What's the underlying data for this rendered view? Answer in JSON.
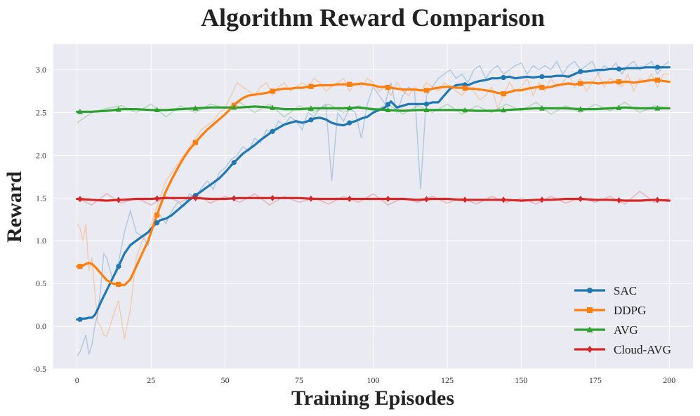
{
  "chart_data": {
    "type": "line",
    "title": "Algorithm Reward Comparison",
    "xlabel": "Training Episodes",
    "ylabel": "Reward",
    "xlim": [
      -8,
      208
    ],
    "ylim": [
      -0.5,
      3.3
    ],
    "xticks": [
      0,
      25,
      50,
      75,
      100,
      125,
      150,
      175,
      200
    ],
    "yticks": [
      -0.5,
      0.0,
      0.5,
      1.0,
      1.5,
      2.0,
      2.5,
      3.0
    ],
    "ytick_labels": [
      "-0.5",
      "0.0",
      "0.5",
      "1.0",
      "1.5",
      "2.0",
      "2.5",
      "3.0"
    ],
    "grid": true,
    "legend_position": "lower-right",
    "background_color": "#eaeaf2",
    "series": [
      {
        "name": "SAC",
        "color": "#1f77b4",
        "marker": "circle",
        "x": [
          0,
          1,
          2,
          3,
          4,
          5,
          6,
          7,
          8,
          9,
          10,
          12,
          14,
          16,
          18,
          20,
          22,
          24,
          26,
          28,
          30,
          32,
          34,
          36,
          38,
          40,
          42,
          44,
          46,
          48,
          50,
          52,
          54,
          56,
          58,
          60,
          62,
          64,
          66,
          68,
          70,
          72,
          74,
          76,
          78,
          80,
          82,
          84,
          86,
          88,
          90,
          92,
          94,
          96,
          98,
          100,
          102,
          104,
          106,
          108,
          110,
          112,
          114,
          116,
          118,
          120,
          122,
          124,
          126,
          128,
          130,
          132,
          134,
          136,
          138,
          140,
          142,
          144,
          146,
          148,
          150,
          152,
          154,
          156,
          158,
          160,
          162,
          164,
          166,
          168,
          170,
          172,
          174,
          176,
          178,
          180,
          182,
          184,
          186,
          188,
          190,
          192,
          194,
          196,
          198,
          200
        ],
        "values": [
          0.08,
          0.08,
          0.09,
          0.09,
          0.1,
          0.1,
          0.13,
          0.2,
          0.28,
          0.35,
          0.42,
          0.56,
          0.7,
          0.85,
          0.95,
          1.0,
          1.05,
          1.1,
          1.18,
          1.24,
          1.26,
          1.3,
          1.36,
          1.42,
          1.48,
          1.53,
          1.58,
          1.63,
          1.68,
          1.73,
          1.8,
          1.88,
          1.95,
          2.02,
          2.07,
          2.12,
          2.18,
          2.23,
          2.28,
          2.32,
          2.36,
          2.38,
          2.4,
          2.38,
          2.4,
          2.43,
          2.44,
          2.42,
          2.38,
          2.36,
          2.35,
          2.38,
          2.4,
          2.43,
          2.45,
          2.5,
          2.53,
          2.56,
          2.63,
          2.56,
          2.58,
          2.6,
          2.6,
          2.6,
          2.6,
          2.62,
          2.62,
          2.7,
          2.78,
          2.82,
          2.83,
          2.82,
          2.85,
          2.87,
          2.88,
          2.9,
          2.9,
          2.91,
          2.92,
          2.9,
          2.91,
          2.92,
          2.91,
          2.92,
          2.92,
          2.92,
          2.93,
          2.93,
          2.92,
          2.95,
          2.98,
          2.98,
          2.99,
          3.0,
          3.0,
          3.01,
          3.01,
          3.01,
          3.02,
          3.02,
          3.02,
          3.03,
          3.03,
          3.03,
          3.03,
          3.03
        ],
        "raw_values": [
          -0.35,
          -0.3,
          -0.2,
          -0.1,
          -0.33,
          -0.22,
          0.0,
          0.15,
          0.45,
          0.85,
          0.8,
          0.55,
          0.75,
          1.1,
          1.35,
          1.1,
          1.05,
          0.95,
          1.25,
          1.3,
          1.2,
          1.35,
          1.45,
          1.4,
          1.55,
          1.5,
          1.62,
          1.7,
          1.6,
          1.8,
          1.85,
          1.95,
          2.0,
          2.1,
          2.05,
          2.2,
          2.15,
          2.3,
          2.25,
          2.4,
          2.35,
          2.45,
          2.4,
          2.3,
          2.5,
          2.45,
          2.55,
          2.6,
          1.7,
          2.5,
          2.4,
          2.55,
          2.5,
          2.2,
          2.6,
          2.8,
          2.7,
          2.6,
          2.85,
          2.5,
          2.7,
          2.8,
          2.75,
          1.6,
          2.7,
          2.8,
          2.9,
          2.95,
          3.0,
          2.9,
          2.95,
          2.85,
          3.0,
          3.05,
          2.9,
          3.0,
          3.05,
          2.95,
          3.0,
          3.05,
          3.08,
          2.95,
          3.05,
          3.0,
          3.05,
          3.0,
          3.1,
          2.95,
          3.05,
          3.1,
          3.0,
          3.05,
          3.1,
          2.95,
          3.05,
          3.0,
          3.08,
          2.95,
          3.05,
          3.1,
          3.0,
          3.05,
          3.1,
          2.95,
          3.05,
          3.1
        ]
      },
      {
        "name": "DDPG",
        "color": "#ff7f0e",
        "marker": "square",
        "x": [
          0,
          1,
          2,
          3,
          4,
          5,
          6,
          7,
          8,
          9,
          10,
          12,
          14,
          16,
          18,
          20,
          22,
          24,
          26,
          28,
          30,
          32,
          34,
          36,
          38,
          40,
          42,
          44,
          46,
          48,
          50,
          52,
          54,
          56,
          58,
          60,
          62,
          64,
          66,
          68,
          70,
          72,
          74,
          76,
          78,
          80,
          82,
          84,
          86,
          88,
          90,
          92,
          94,
          96,
          98,
          100,
          102,
          104,
          106,
          108,
          110,
          112,
          114,
          116,
          118,
          120,
          122,
          124,
          126,
          128,
          130,
          132,
          134,
          136,
          138,
          140,
          142,
          144,
          146,
          148,
          150,
          152,
          154,
          156,
          158,
          160,
          162,
          164,
          166,
          168,
          170,
          172,
          174,
          176,
          178,
          180,
          182,
          184,
          186,
          188,
          190,
          192,
          194,
          196,
          198,
          200
        ],
        "values": [
          0.7,
          0.7,
          0.71,
          0.73,
          0.74,
          0.73,
          0.7,
          0.66,
          0.62,
          0.58,
          0.54,
          0.5,
          0.49,
          0.48,
          0.55,
          0.7,
          0.85,
          1.0,
          1.2,
          1.4,
          1.58,
          1.72,
          1.85,
          1.97,
          2.07,
          2.15,
          2.23,
          2.3,
          2.36,
          2.42,
          2.48,
          2.55,
          2.62,
          2.67,
          2.7,
          2.71,
          2.72,
          2.73,
          2.75,
          2.77,
          2.78,
          2.78,
          2.79,
          2.79,
          2.8,
          2.81,
          2.82,
          2.82,
          2.82,
          2.83,
          2.83,
          2.83,
          2.83,
          2.84,
          2.83,
          2.82,
          2.8,
          2.8,
          2.79,
          2.78,
          2.77,
          2.77,
          2.77,
          2.76,
          2.76,
          2.78,
          2.79,
          2.8,
          2.8,
          2.79,
          2.79,
          2.78,
          2.78,
          2.77,
          2.76,
          2.75,
          2.73,
          2.72,
          2.74,
          2.76,
          2.76,
          2.78,
          2.79,
          2.8,
          2.79,
          2.8,
          2.82,
          2.83,
          2.84,
          2.83,
          2.84,
          2.85,
          2.85,
          2.84,
          2.85,
          2.85,
          2.86,
          2.86,
          2.86,
          2.85,
          2.86,
          2.87,
          2.88,
          2.88,
          2.87,
          2.86
        ],
        "raw_values": [
          1.2,
          1.15,
          1.0,
          1.2,
          0.65,
          0.8,
          0.4,
          0.05,
          0.0,
          -0.1,
          -0.12,
          0.1,
          0.3,
          -0.15,
          0.2,
          0.8,
          1.0,
          1.1,
          1.3,
          1.5,
          1.7,
          1.8,
          1.9,
          2.0,
          2.1,
          2.2,
          2.3,
          2.35,
          2.4,
          2.5,
          2.55,
          2.7,
          2.85,
          2.8,
          2.75,
          2.7,
          2.8,
          2.85,
          2.7,
          2.8,
          2.85,
          2.75,
          2.8,
          2.85,
          2.8,
          2.9,
          2.85,
          2.75,
          2.8,
          2.85,
          2.9,
          2.75,
          2.85,
          2.8,
          2.9,
          2.85,
          2.75,
          2.8,
          2.7,
          2.85,
          2.75,
          2.7,
          2.8,
          2.75,
          2.85,
          2.8,
          2.75,
          2.85,
          2.8,
          2.75,
          2.7,
          2.8,
          2.75,
          2.65,
          2.7,
          2.8,
          2.55,
          2.7,
          2.85,
          2.75,
          2.8,
          2.9,
          2.7,
          2.85,
          2.75,
          2.9,
          2.8,
          2.85,
          2.95,
          2.8,
          2.9,
          2.75,
          2.85,
          2.95,
          2.8,
          2.9,
          2.85,
          2.8,
          2.95,
          2.75,
          2.9,
          2.85,
          2.95,
          2.8,
          2.95,
          2.95
        ]
      },
      {
        "name": "AVG",
        "color": "#2ca02c",
        "marker": "triangle",
        "x": [
          0,
          5,
          10,
          15,
          20,
          25,
          30,
          35,
          40,
          45,
          50,
          55,
          60,
          65,
          70,
          75,
          80,
          85,
          90,
          95,
          100,
          105,
          110,
          115,
          120,
          125,
          130,
          135,
          140,
          145,
          150,
          155,
          160,
          165,
          170,
          175,
          180,
          185,
          190,
          195,
          200
        ],
        "values": [
          2.51,
          2.51,
          2.52,
          2.54,
          2.54,
          2.53,
          2.53,
          2.54,
          2.55,
          2.56,
          2.56,
          2.56,
          2.57,
          2.56,
          2.54,
          2.54,
          2.55,
          2.55,
          2.55,
          2.56,
          2.54,
          2.53,
          2.52,
          2.53,
          2.53,
          2.53,
          2.53,
          2.52,
          2.52,
          2.53,
          2.54,
          2.55,
          2.55,
          2.55,
          2.54,
          2.54,
          2.55,
          2.56,
          2.55,
          2.55,
          2.55
        ],
        "raw_values": [
          2.38,
          2.5,
          2.55,
          2.58,
          2.5,
          2.6,
          2.45,
          2.58,
          2.5,
          2.6,
          2.55,
          2.62,
          2.5,
          2.6,
          2.45,
          2.58,
          2.5,
          2.6,
          2.5,
          2.58,
          2.52,
          2.6,
          2.48,
          2.58,
          2.5,
          2.6,
          2.48,
          2.58,
          2.5,
          2.6,
          2.52,
          2.62,
          2.48,
          2.58,
          2.5,
          2.6,
          2.52,
          2.62,
          2.5,
          2.58,
          2.55
        ]
      },
      {
        "name": "Cloud-AVG",
        "color": "#d62728",
        "marker": "diamond",
        "x": [
          0,
          5,
          10,
          15,
          20,
          25,
          30,
          35,
          40,
          45,
          50,
          55,
          60,
          65,
          70,
          75,
          80,
          85,
          90,
          95,
          100,
          105,
          110,
          115,
          120,
          125,
          130,
          135,
          140,
          145,
          150,
          155,
          160,
          165,
          170,
          175,
          180,
          185,
          190,
          195,
          200
        ],
        "values": [
          1.49,
          1.48,
          1.47,
          1.48,
          1.49,
          1.49,
          1.5,
          1.5,
          1.5,
          1.49,
          1.49,
          1.5,
          1.5,
          1.5,
          1.5,
          1.5,
          1.49,
          1.49,
          1.49,
          1.49,
          1.49,
          1.49,
          1.49,
          1.48,
          1.49,
          1.49,
          1.48,
          1.48,
          1.48,
          1.48,
          1.47,
          1.48,
          1.48,
          1.49,
          1.49,
          1.48,
          1.48,
          1.47,
          1.47,
          1.48,
          1.47
        ],
        "raw_values": [
          1.5,
          1.42,
          1.55,
          1.44,
          1.5,
          1.42,
          1.52,
          1.45,
          1.55,
          1.44,
          1.52,
          1.45,
          1.55,
          1.42,
          1.52,
          1.45,
          1.5,
          1.43,
          1.52,
          1.45,
          1.55,
          1.42,
          1.5,
          1.45,
          1.52,
          1.44,
          1.5,
          1.43,
          1.52,
          1.45,
          1.5,
          1.43,
          1.52,
          1.44,
          1.5,
          1.45,
          1.52,
          1.43,
          1.58,
          1.45,
          1.5
        ]
      }
    ]
  }
}
